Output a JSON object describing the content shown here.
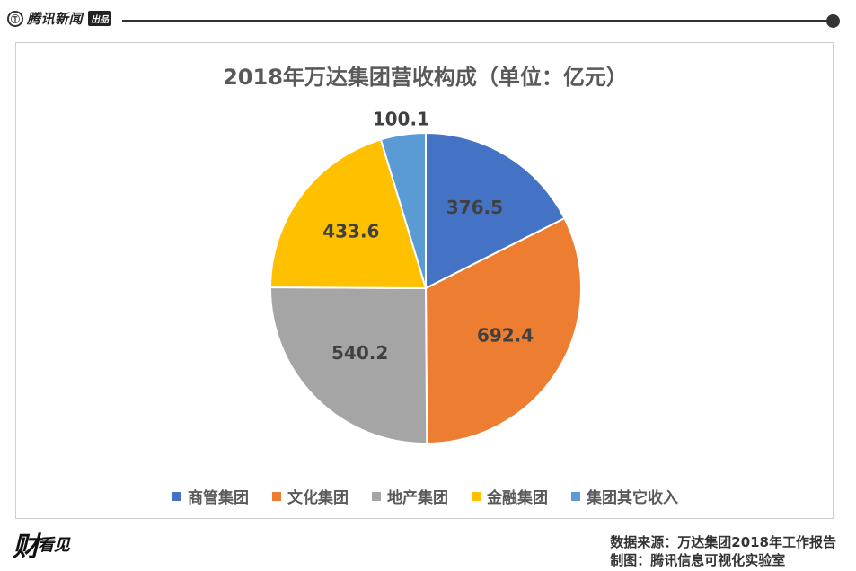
{
  "header": {
    "brand": "腾讯新闻",
    "badge": "出品",
    "logo_mark": "Ⓣ"
  },
  "chart_data": {
    "type": "pie",
    "title": "2018年万达集团营收构成（单位：亿元）",
    "start_angle_deg": 0,
    "direction": "clockwise",
    "series": [
      {
        "name": "商管集团",
        "value": 376.5,
        "label": "376.5",
        "color": "#4472C4"
      },
      {
        "name": "文化集团",
        "value": 692.4,
        "label": "692.4",
        "color": "#ED7D31"
      },
      {
        "name": "地产集团",
        "value": 540.2,
        "label": "540.2",
        "color": "#A5A5A5"
      },
      {
        "name": "金融集团",
        "value": 433.6,
        "label": "433.6",
        "color": "#FFC000"
      },
      {
        "name": "集团其它收入",
        "value": 100.1,
        "label": "100.1",
        "color": "#5B9BD5"
      }
    ],
    "legend_position": "bottom"
  },
  "footer": {
    "logo_big": "财",
    "logo_small": "看见",
    "source": "数据来源：万达集团2018年工作报告",
    "credit": "制图：腾讯信息可视化实验室"
  },
  "colors": {
    "rule": "#333333",
    "title": "#595959",
    "label": "#404040"
  }
}
